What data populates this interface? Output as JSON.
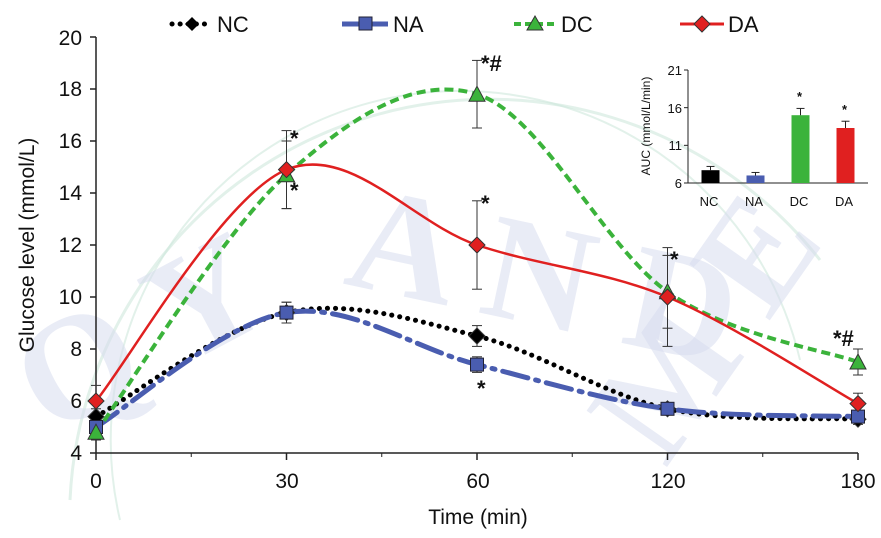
{
  "chart_data": [
    {
      "type": "line",
      "xlabel": "Time (min)",
      "ylabel": "Glucose level (mmol/L)",
      "x": [
        "0",
        "30",
        "60",
        "120",
        "180"
      ],
      "yticks": [
        "4",
        "6",
        "8",
        "10",
        "12",
        "14",
        "16",
        "18",
        "20"
      ],
      "ylim": [
        4,
        20
      ],
      "legend_position": "top",
      "series": [
        {
          "name": "NC",
          "values": [
            5.4,
            9.4,
            8.5,
            5.7,
            5.3
          ],
          "errors": [
            0.3,
            0.4,
            0.4,
            0.2,
            0.2
          ],
          "color": "#000000",
          "style": "dotted",
          "marker": "diamond"
        },
        {
          "name": "NA",
          "values": [
            5.0,
            9.4,
            7.4,
            5.7,
            5.4
          ],
          "errors": [
            0.3,
            0.4,
            0.3,
            0.2,
            0.2
          ],
          "color": "#4a5db0",
          "style": "dash-dot",
          "marker": "square"
        },
        {
          "name": "DC",
          "values": [
            4.8,
            14.7,
            17.8,
            10.2,
            7.5
          ],
          "errors": [
            0.3,
            1.3,
            1.3,
            1.4,
            0.5
          ],
          "color": "#3bb33b",
          "style": "dashed",
          "marker": "triangle"
        },
        {
          "name": "DA",
          "values": [
            6.0,
            14.9,
            12.0,
            10.0,
            5.9
          ],
          "errors": [
            0.6,
            1.5,
            1.7,
            1.9,
            0.4
          ],
          "color": "#e02020",
          "style": "solid",
          "marker": "diamond"
        }
      ],
      "annotations": [
        "*",
        "*",
        "*#",
        "*",
        "*",
        "*",
        "*#",
        "*"
      ]
    },
    {
      "type": "bar",
      "ylabel": "AUC (mmol/L/min)",
      "categories": [
        "NC",
        "NA",
        "DC",
        "DA"
      ],
      "values": [
        7.7,
        7.0,
        15.0,
        13.3
      ],
      "errors": [
        0.5,
        0.4,
        0.9,
        0.9
      ],
      "colors": [
        "#000000",
        "#4a5db0",
        "#3bb33b",
        "#e02020"
      ],
      "yticks": [
        "6",
        "11",
        "16",
        "21"
      ],
      "ylim": [
        6,
        21
      ],
      "annotations": [
        "*",
        "*"
      ]
    }
  ],
  "watermark": "QYMEDICINE",
  "colors": {
    "nc": "#000000",
    "na": "#4a5db0",
    "dc": "#3bb33b",
    "da": "#e02020"
  }
}
